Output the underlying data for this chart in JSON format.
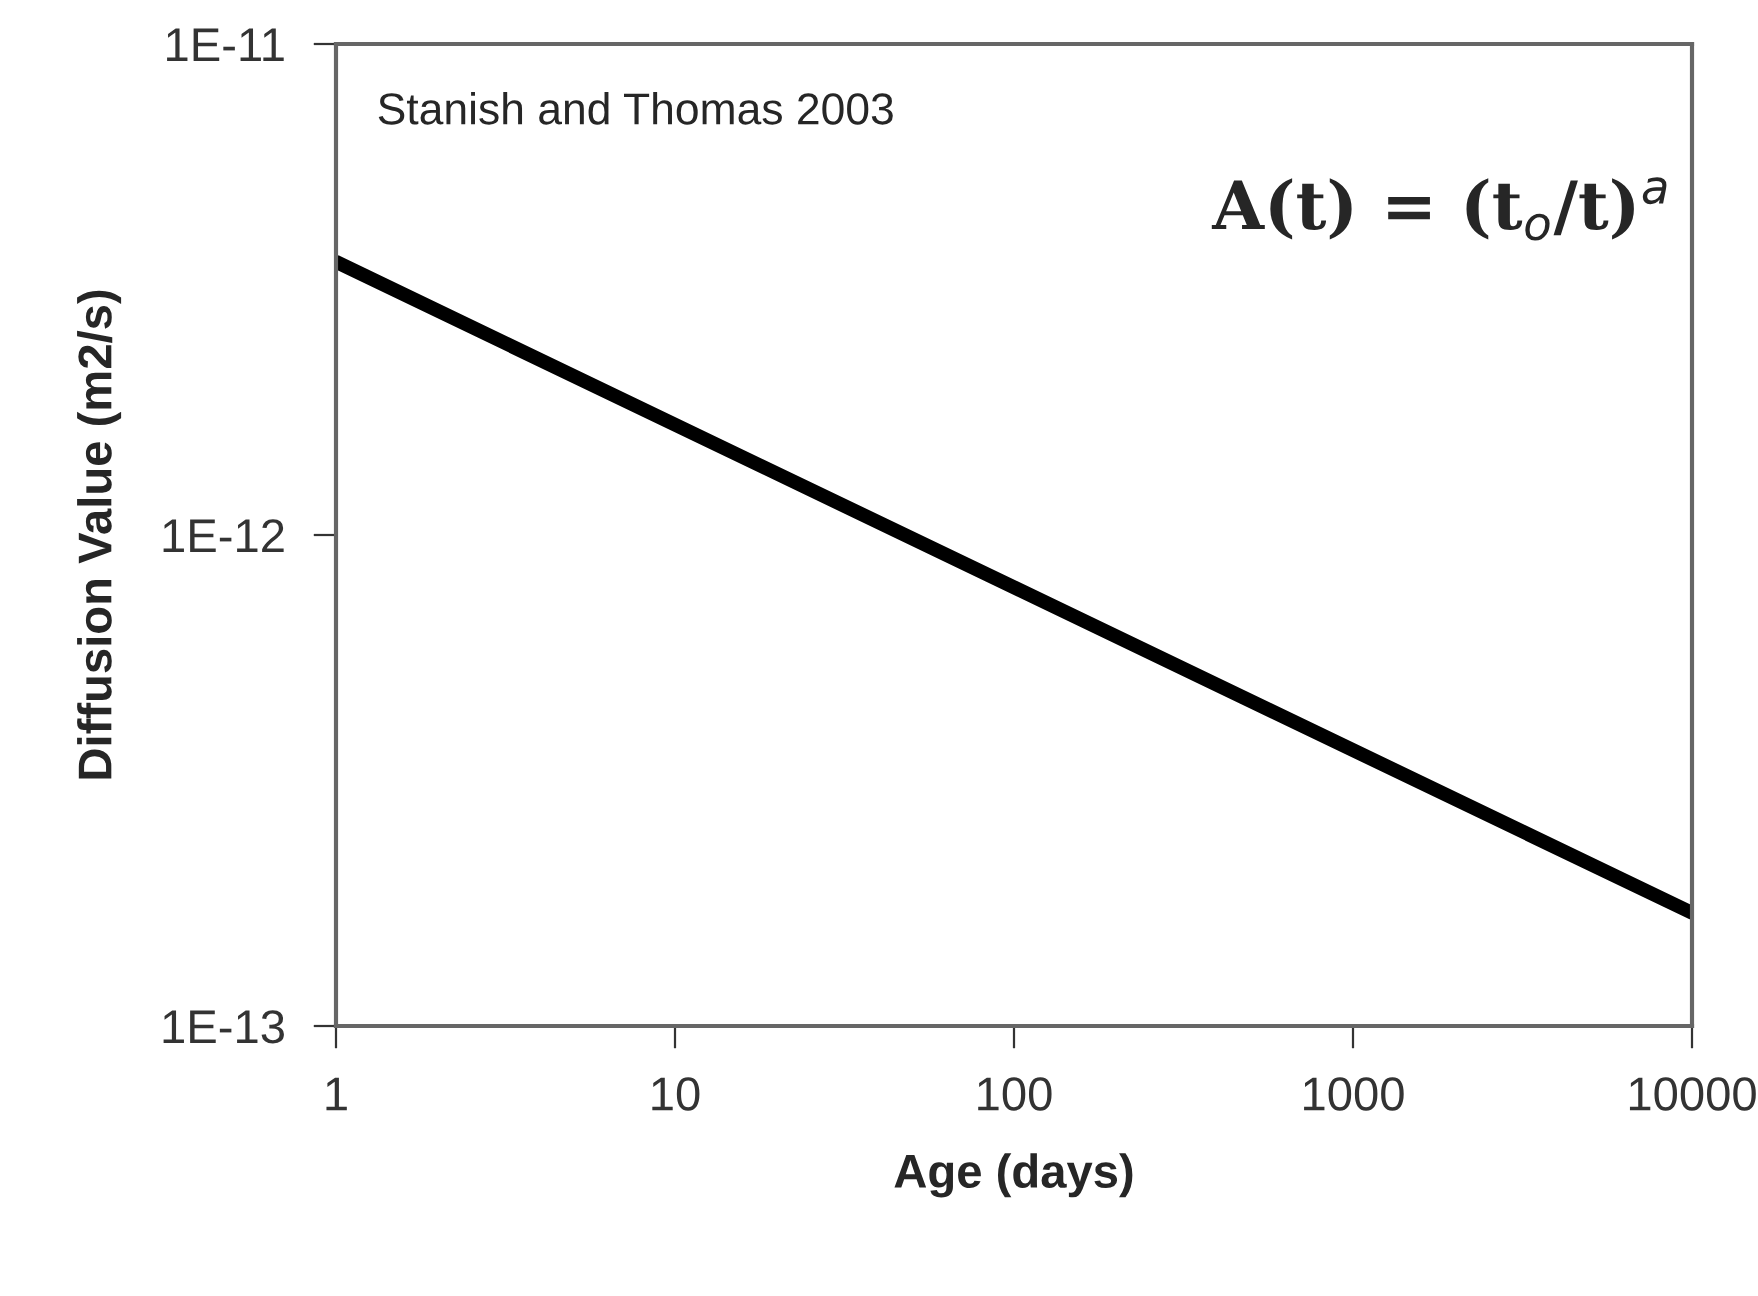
{
  "chart_data": {
    "type": "line",
    "xlabel": "Age (days)",
    "ylabel": "Diffusion Value (m2/s)",
    "log": "xy",
    "x": [
      1,
      10000
    ],
    "series": [
      {
        "color": "#000000",
        "values": [
          3.6e-12,
          1.7e-13
        ]
      }
    ],
    "xlim": [
      1,
      10000
    ],
    "xticks": [
      1,
      10,
      100,
      1000,
      10000
    ],
    "ylim": [
      1e-13,
      1e-11
    ],
    "yticks": [
      {
        "value": 1e-13,
        "label": "1E-13"
      },
      {
        "value": 1e-12,
        "label": "1E-12"
      },
      {
        "value": 1e-11,
        "label": "1E-11"
      }
    ],
    "grid": false,
    "legend": false,
    "marker": "none",
    "line_style": "solid",
    "annotations": [
      "Stanish and Thomas 2003",
      "A(t) = (t$_{o}$/t)$^{a}$"
    ]
  }
}
